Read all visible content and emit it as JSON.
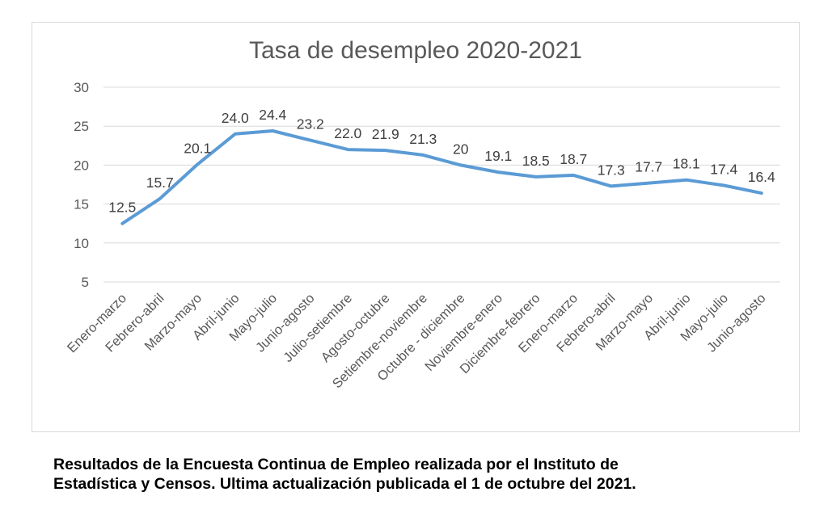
{
  "chart_data": {
    "type": "line",
    "title": "Tasa de desempleo 2020-2021",
    "xlabel": "",
    "ylabel": "",
    "ylim": [
      5,
      30
    ],
    "yticks": [
      5,
      10,
      15,
      20,
      25,
      30
    ],
    "grid": true,
    "legend": "none",
    "categories": [
      "Enero-marzo",
      "Febrero-abril",
      "Marzo-mayo",
      "Abril-junio",
      "Mayo-julio",
      "Junio-agosto",
      "Julio-setiembre",
      "Agosto-octubre",
      "Setiembre-noviembre",
      "Octubre - diciembre",
      "Noviembre-enero",
      "Diciembre-febrero",
      "Enero-marzo",
      "Febrero-abril",
      "Marzo-mayo",
      "Abril-junio",
      "Mayo-julio",
      "Junio-agosto"
    ],
    "series": [
      {
        "values": [
          12.5,
          15.7,
          20.1,
          24.0,
          24.4,
          23.2,
          22.0,
          21.9,
          21.3,
          20,
          19.1,
          18.5,
          18.7,
          17.3,
          17.7,
          18.1,
          17.4,
          16.4
        ],
        "labels": [
          "12.5",
          "15.7",
          "20.1",
          "24.0",
          "24.4",
          "23.2",
          "22.0",
          "21.9",
          "21.3",
          "20",
          "19.1",
          "18.5",
          "18.7",
          "17.3",
          "17.7",
          "18.1",
          "17.4",
          "16.4"
        ],
        "color": "#5b9bd5"
      }
    ]
  },
  "caption": {
    "line1": "Resultados de la Encuesta Continua de Empleo realizada por el Instituto de",
    "line2": "Estadística y Censos. Ultima actualización publicada el 1 de octubre del 2021."
  }
}
